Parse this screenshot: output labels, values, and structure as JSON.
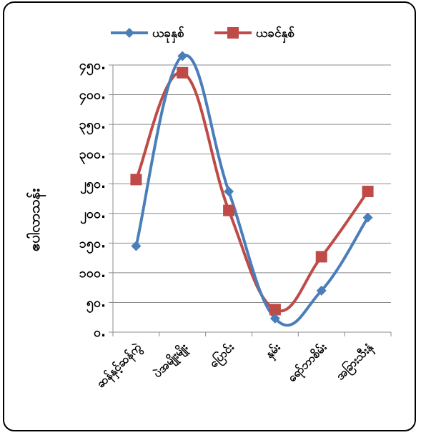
{
  "chart_data": {
    "type": "line",
    "title": "",
    "xlabel": "",
    "ylabel": "ဧပါလာသန်း",
    "categories": [
      "ဆန်နှင့်ဆန်ကွဲ",
      "ပဲအမျိုးမျိုး",
      "ပြောင်း",
      "နှမ်း",
      "ရော်ဘာစိမ်း",
      "အခြားသီးနှံ"
    ],
    "ylim": [
      0,
      450
    ],
    "yticks": [
      0,
      50,
      100,
      150,
      200,
      250,
      300,
      350,
      400,
      450
    ],
    "ytick_labels": [
      "၀.",
      "၅၀.",
      "၁၀၀.",
      "၁၅၀.",
      "၂၀၀.",
      "၂၅၀.",
      "၃၀၀.",
      "၃၅၀.",
      "၄၀၀.",
      "၄၅၀."
    ],
    "grid": true,
    "legend": "top",
    "series": [
      {
        "name": "ယခုနှစ်",
        "color": "#4a7ebb",
        "marker": "diamond",
        "values": [
          145,
          465,
          237,
          23,
          70,
          193
        ]
      },
      {
        "name": "ယခင်နှစ်",
        "color": "#be4b48",
        "marker": "square",
        "values": [
          257,
          437,
          205,
          38,
          127,
          237
        ]
      }
    ]
  }
}
